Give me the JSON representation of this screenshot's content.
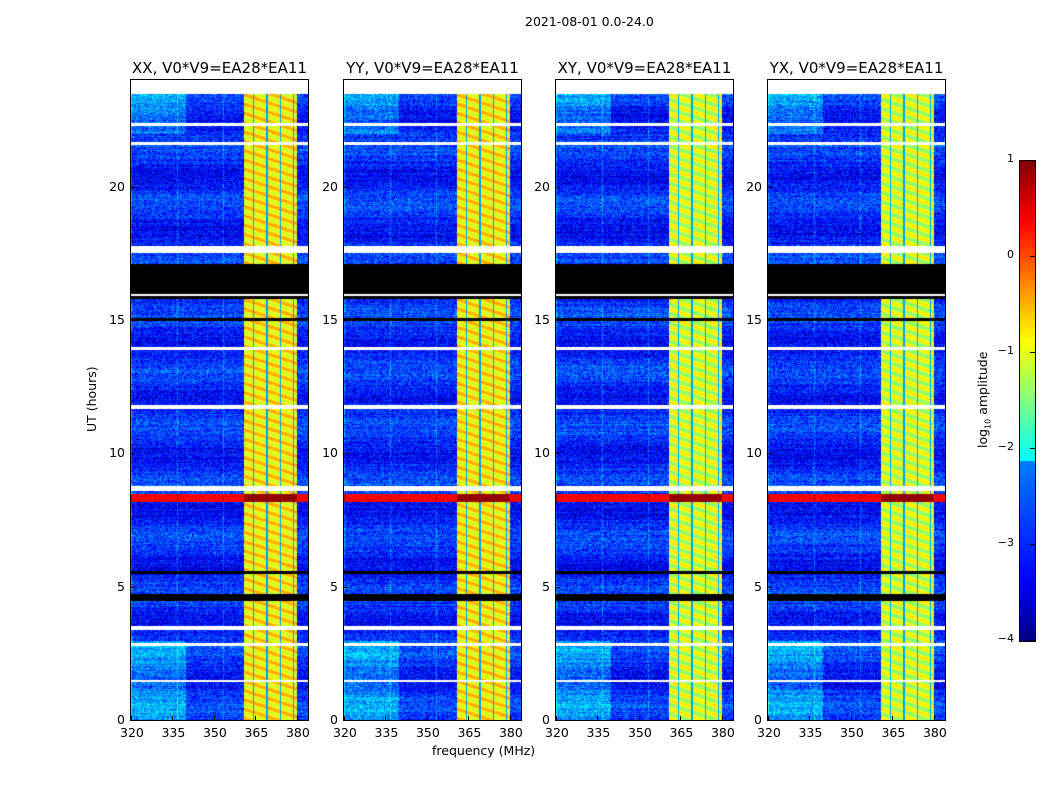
{
  "suptitle": "2021-08-01 0.0-24.0",
  "chart_data": {
    "type": "heatmap",
    "xlabel": "frequency (MHz)",
    "ylabel": "UT (hours)",
    "xlim": [
      320,
      384
    ],
    "ylim": [
      0,
      24
    ],
    "xticks": [
      "320",
      "335",
      "350",
      "365",
      "380"
    ],
    "xtick_values": [
      320,
      335,
      350,
      365,
      380
    ],
    "yticks": [
      "0",
      "5",
      "10",
      "15",
      "20"
    ],
    "ytick_values": [
      0,
      5,
      10,
      15,
      20
    ],
    "colorbar": {
      "label": "log10 amplitude",
      "label_main": "log",
      "label_sub": "10",
      "label_rest": " amplitude",
      "ticks": [
        "1",
        "0",
        "−1",
        "−2",
        "−3",
        "−4"
      ],
      "tick_values": [
        1,
        0,
        -1,
        -2,
        -3,
        -4
      ],
      "range": [
        -4,
        1
      ],
      "colormap": "jet"
    },
    "background_level": -3.2,
    "rfi_band_mhz": [
      360.5,
      380
    ],
    "rfi_level": -0.8,
    "flagged_white_hours": [
      [
        23.5,
        24
      ],
      [
        22.3,
        22.4
      ],
      [
        21.6,
        21.7
      ],
      [
        17.55,
        17.8
      ],
      [
        15.9,
        16.0
      ],
      [
        13.9,
        14.0
      ],
      [
        11.7,
        11.85
      ],
      [
        8.6,
        8.8
      ],
      [
        3.4,
        3.55
      ],
      [
        2.8,
        2.9
      ],
      [
        1.45,
        1.5
      ]
    ],
    "flagged_black_hours": [
      [
        15.8,
        17.1
      ],
      [
        4.5,
        4.75
      ],
      [
        15.0,
        15.1
      ],
      [
        5.5,
        5.6
      ]
    ],
    "bright_event_hours": [
      [
        8.2,
        8.5
      ]
    ],
    "panels": [
      {
        "title": "XX, V0*V9=EA28*EA11",
        "band_offset": 0
      },
      {
        "title": "YY, V0*V9=EA28*EA11",
        "band_offset": 0
      },
      {
        "title": "XY, V0*V9=EA28*EA11",
        "band_offset": 0
      },
      {
        "title": "YX, V0*V9=EA28*EA11",
        "band_offset": 0
      }
    ]
  }
}
